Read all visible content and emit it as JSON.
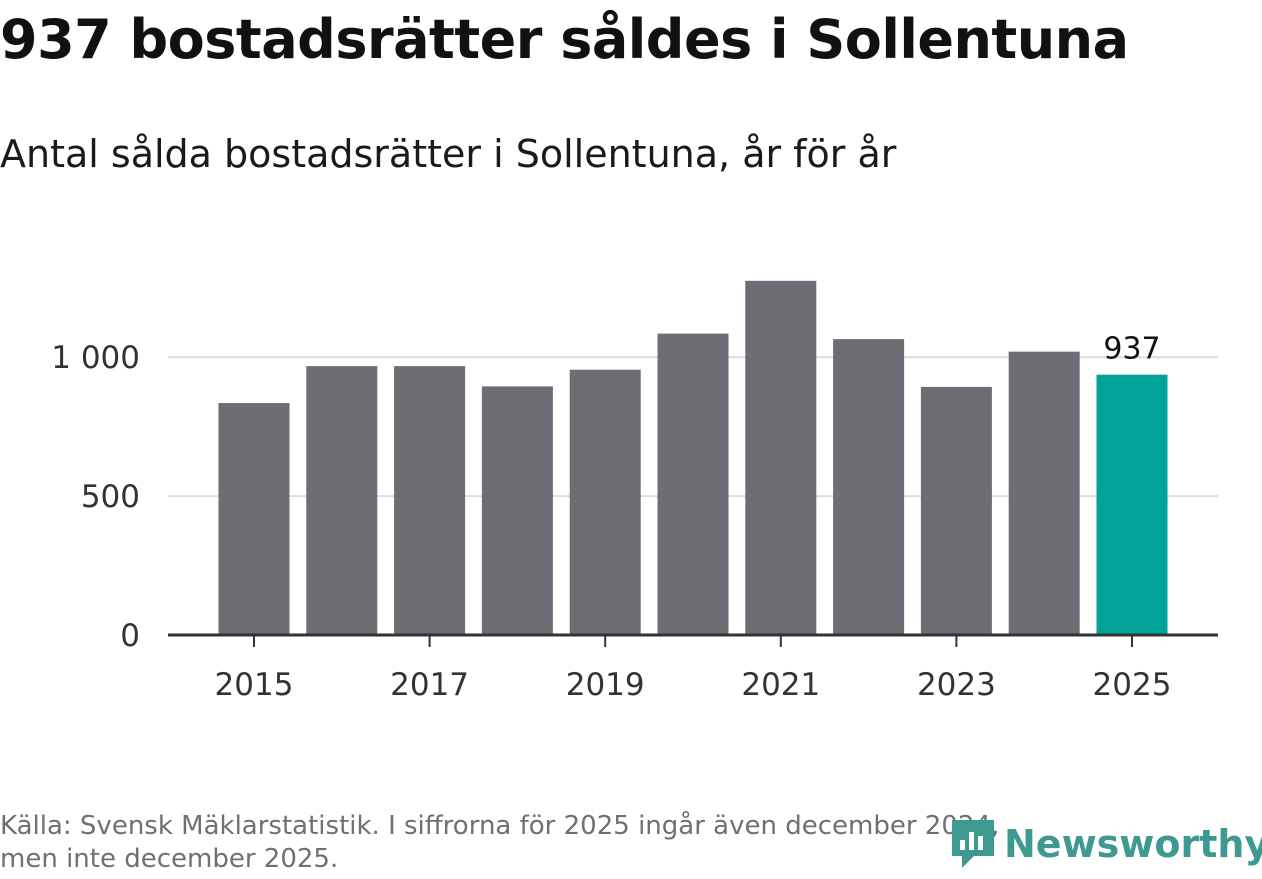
{
  "header": {
    "title": "937 bostadsrätter såldes i Sollentuna",
    "subtitle": "Antal sålda bostadsrätter i Sollentuna, år för år"
  },
  "footer": {
    "source_line1": "Källa: Svensk Mäklarstatistik. I siffrorna för 2025 ingår även december 2024,",
    "source_line2": "men inte december 2025.",
    "logo_text": "Newsworthy"
  },
  "colors": {
    "bar": "#6e6d73",
    "highlight": "#00a39a",
    "gridline": "#dddddd",
    "axis": "#333333",
    "logo": "#3e9a90"
  },
  "chart_data": {
    "type": "bar",
    "title": "937 bostadsrätter såldes i Sollentuna",
    "subtitle": "Antal sålda bostadsrätter i Sollentuna, år för år",
    "categories": [
      "2015",
      "2016",
      "2017",
      "2018",
      "2019",
      "2020",
      "2021",
      "2022",
      "2023",
      "2024",
      "2025"
    ],
    "values": [
      835,
      968,
      968,
      895,
      955,
      1085,
      1275,
      1065,
      893,
      1020,
      937
    ],
    "highlight_index": 10,
    "data_label": "937",
    "xticks": [
      "2015",
      "2017",
      "2019",
      "2021",
      "2023",
      "2025"
    ],
    "yticks": [
      0,
      500,
      1000
    ],
    "ytick_labels": [
      "0",
      "500",
      "1 000"
    ],
    "ylim": [
      0,
      1300
    ],
    "xlabel": "",
    "ylabel": "",
    "grid": true
  }
}
